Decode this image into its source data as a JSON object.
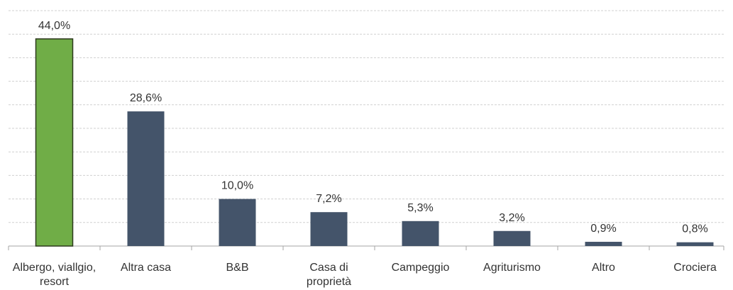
{
  "chart_data": {
    "type": "bar",
    "categories": [
      "Albergo, viallgio, resort",
      "Altra casa",
      "B&B",
      "Casa di proprietà",
      "Campeggio",
      "Agriturismo",
      "Altro",
      "Crociera"
    ],
    "values": [
      44.0,
      28.6,
      10.0,
      7.2,
      5.3,
      3.2,
      0.9,
      0.8
    ],
    "value_labels": [
      "44,0%",
      "28,6%",
      "10,0%",
      "7,2%",
      "5,3%",
      "3,2%",
      "0,9%",
      "0,8%"
    ],
    "colors": [
      "#70ad47",
      "#44546a",
      "#44546a",
      "#44546a",
      "#44546a",
      "#44546a",
      "#44546a",
      "#44546a"
    ],
    "ylim": [
      0,
      50
    ],
    "yticks": [
      0,
      5,
      10,
      15,
      20,
      25,
      30,
      35,
      40,
      45,
      50
    ],
    "grid": true
  }
}
